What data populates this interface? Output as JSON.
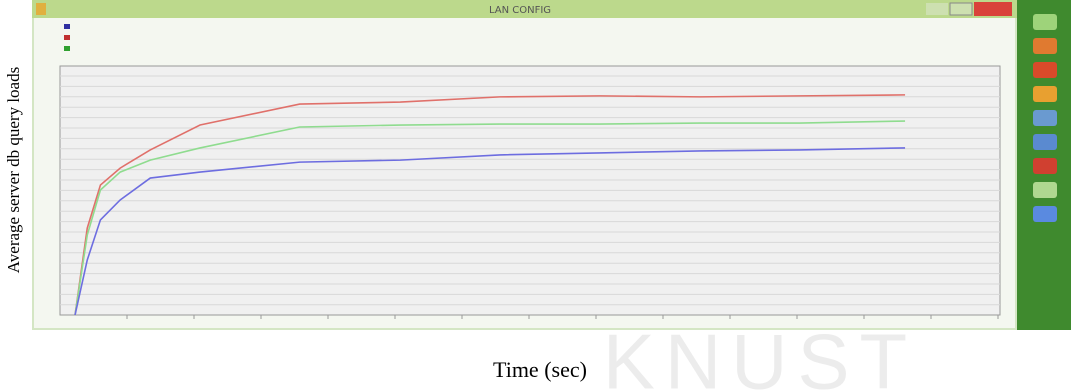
{
  "chart_data": {
    "type": "line",
    "window_title": "LAN CONFIG",
    "y_label": "Average server db query loads",
    "x_label": "Time (sec)",
    "watermark": "KNUST",
    "x": [
      1.6,
      2.9,
      4.3,
      6.4,
      9.6,
      14.9,
      25.5,
      36.2,
      46.8,
      57.4,
      68.1,
      78.7,
      89.9
    ],
    "xlim": [
      0,
      100
    ],
    "ylim": [
      0,
      100
    ],
    "grid": true,
    "series": [
      {
        "color": "#e0706a",
        "values": [
          0,
          34.9,
          52.2,
          59.0,
          66.3,
          76.3,
          84.7,
          85.5,
          87.6,
          88.0,
          87.6,
          88.0,
          88.4
        ]
      },
      {
        "color": "#8fdc8f",
        "values": [
          0,
          32.1,
          50.2,
          57.4,
          62.2,
          67.1,
          75.5,
          76.3,
          76.7,
          76.7,
          77.1,
          77.1,
          77.9
        ]
      },
      {
        "color": "#6d6de0",
        "values": [
          0,
          22.1,
          38.2,
          46.2,
          55.0,
          57.4,
          61.4,
          62.2,
          64.3,
          65.1,
          65.9,
          66.3,
          67.1
        ]
      }
    ]
  }
}
